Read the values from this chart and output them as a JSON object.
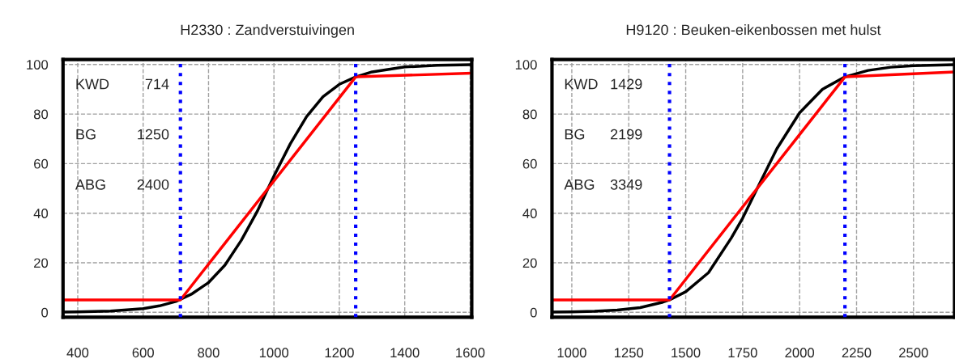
{
  "chart_data": [
    {
      "type": "line",
      "title": "H2330 : Zandverstuivingen",
      "xlim": [
        355,
        1605
      ],
      "ylim": [
        -2,
        102
      ],
      "xticks": [
        400,
        600,
        800,
        1000,
        1200,
        1400,
        1600
      ],
      "yticks": [
        0,
        20,
        40,
        60,
        80,
        100
      ],
      "grid": true,
      "legend": false,
      "marker": "none",
      "line_style": "solid",
      "series": [
        {
          "color": "#000000",
          "x": [
            355,
            400,
            500,
            600,
            650,
            700,
            750,
            800,
            850,
            900,
            950,
            982,
            1000,
            1050,
            1100,
            1150,
            1200,
            1250,
            1300,
            1400,
            1500,
            1605
          ],
          "values": [
            0.1,
            0.2,
            0.5,
            1.5,
            2.6,
            4.4,
            7.5,
            12,
            19,
            29,
            41,
            50,
            55,
            68,
            79,
            87,
            92,
            95,
            97,
            99,
            99.7,
            99.9
          ]
        },
        {
          "color": "#ff0000",
          "x": [
            355,
            714,
            1250,
            1605
          ],
          "values": [
            5,
            5,
            95,
            96.5
          ]
        }
      ],
      "ref_lines": [
        {
          "axis": "x",
          "value": 714,
          "color": "#0000ff",
          "line_style": "dotted"
        },
        {
          "axis": "x",
          "value": 1250,
          "color": "#0000ff",
          "line_style": "dotted"
        }
      ],
      "annotations": [
        "KWD 714",
        "BG 1250",
        "ABG 2400"
      ]
    },
    {
      "type": "line",
      "title": "H9120 : Beuken-eikenbossen met hulst",
      "xlim": [
        913,
        2680
      ],
      "ylim": [
        -2,
        102
      ],
      "xticks": [
        1000,
        1250,
        1500,
        1750,
        2000,
        2250,
        2500
      ],
      "yticks": [
        0,
        20,
        40,
        60,
        80,
        100
      ],
      "grid": true,
      "legend": false,
      "marker": "none",
      "line_style": "solid",
      "series": [
        {
          "color": "#000000",
          "x": [
            913,
            1000,
            1100,
            1200,
            1300,
            1400,
            1429,
            1500,
            1600,
            1700,
            1750,
            1814,
            1900,
            2000,
            2100,
            2199,
            2300,
            2400,
            2500,
            2680
          ],
          "values": [
            0.1,
            0.2,
            0.4,
            0.9,
            1.9,
            4.1,
            5,
            8.3,
            16,
            30,
            38,
            50,
            66,
            80.5,
            90,
            95,
            97.6,
            98.9,
            99.5,
            99.9
          ]
        },
        {
          "color": "#ff0000",
          "x": [
            913,
            1429,
            2199,
            2680
          ],
          "values": [
            5,
            5,
            95,
            97
          ]
        }
      ],
      "ref_lines": [
        {
          "axis": "x",
          "value": 1429,
          "color": "#0000ff",
          "line_style": "dotted"
        },
        {
          "axis": "x",
          "value": 2199,
          "color": "#0000ff",
          "line_style": "dotted"
        }
      ],
      "annotations": [
        "KWD 1429",
        "BG 2199",
        "ABG 3349"
      ]
    }
  ]
}
